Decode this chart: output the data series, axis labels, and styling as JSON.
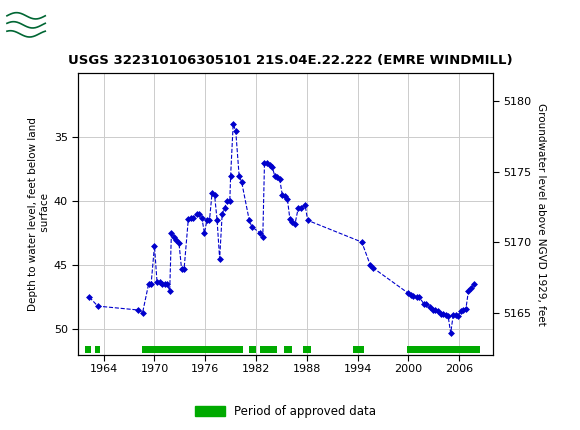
{
  "title": "USGS 322310106305101 21S.04E.22.222 (EMRE WINDMILL)",
  "ylabel_left": "Depth to water level, feet below land\n surface",
  "ylabel_right": "Groundwater level above NGVD 1929, feet",
  "ylim_left": [
    30,
    52
  ],
  "ylim_right": [
    5162,
    5182
  ],
  "xlim": [
    1961,
    2010
  ],
  "xticks": [
    1964,
    1970,
    1976,
    1982,
    1988,
    1994,
    2000,
    2006
  ],
  "yticks_left": [
    35,
    40,
    45,
    50
  ],
  "yticks_right": [
    5165,
    5170,
    5175,
    5180
  ],
  "header_color": "#006633",
  "data_color": "#0000cc",
  "approved_color": "#00aa00",
  "grid_color": "#cccccc",
  "data_points": [
    [
      1962.3,
      47.5
    ],
    [
      1963.3,
      48.2
    ],
    [
      1968.0,
      48.5
    ],
    [
      1968.6,
      48.7
    ],
    [
      1969.3,
      46.5
    ],
    [
      1969.6,
      46.5
    ],
    [
      1970.0,
      43.5
    ],
    [
      1970.3,
      46.3
    ],
    [
      1970.6,
      46.3
    ],
    [
      1970.9,
      46.5
    ],
    [
      1971.2,
      46.5
    ],
    [
      1971.5,
      46.5
    ],
    [
      1971.8,
      47.0
    ],
    [
      1972.0,
      42.5
    ],
    [
      1972.3,
      42.8
    ],
    [
      1972.6,
      43.0
    ],
    [
      1972.9,
      43.3
    ],
    [
      1973.2,
      45.3
    ],
    [
      1973.5,
      45.3
    ],
    [
      1974.0,
      41.4
    ],
    [
      1974.3,
      41.3
    ],
    [
      1974.6,
      41.3
    ],
    [
      1975.0,
      41.0
    ],
    [
      1975.3,
      41.0
    ],
    [
      1975.6,
      41.3
    ],
    [
      1975.9,
      42.5
    ],
    [
      1976.2,
      41.5
    ],
    [
      1976.5,
      41.5
    ],
    [
      1976.8,
      39.4
    ],
    [
      1977.1,
      39.5
    ],
    [
      1977.4,
      41.5
    ],
    [
      1977.7,
      44.5
    ],
    [
      1978.0,
      41.0
    ],
    [
      1978.3,
      40.5
    ],
    [
      1978.6,
      40.0
    ],
    [
      1978.9,
      40.0
    ],
    [
      1979.0,
      38.0
    ],
    [
      1979.3,
      34.0
    ],
    [
      1979.6,
      34.5
    ],
    [
      1980.0,
      38.0
    ],
    [
      1980.3,
      38.5
    ],
    [
      1981.2,
      41.5
    ],
    [
      1981.5,
      42.0
    ],
    [
      1982.5,
      42.5
    ],
    [
      1982.8,
      42.8
    ],
    [
      1983.0,
      37.0
    ],
    [
      1983.3,
      37.0
    ],
    [
      1983.6,
      37.2
    ],
    [
      1983.9,
      37.3
    ],
    [
      1984.2,
      38.0
    ],
    [
      1984.5,
      38.1
    ],
    [
      1984.8,
      38.3
    ],
    [
      1985.1,
      39.5
    ],
    [
      1985.4,
      39.6
    ],
    [
      1985.7,
      39.8
    ],
    [
      1986.0,
      41.4
    ],
    [
      1986.3,
      41.6
    ],
    [
      1986.6,
      41.8
    ],
    [
      1987.0,
      40.5
    ],
    [
      1987.3,
      40.5
    ],
    [
      1987.8,
      40.3
    ],
    [
      1988.1,
      41.5
    ],
    [
      1994.5,
      43.2
    ],
    [
      1995.5,
      45.0
    ],
    [
      1995.8,
      45.2
    ],
    [
      2000.0,
      47.2
    ],
    [
      2000.3,
      47.3
    ],
    [
      2000.6,
      47.4
    ],
    [
      2001.0,
      47.5
    ],
    [
      2001.3,
      47.5
    ],
    [
      2001.8,
      48.0
    ],
    [
      2002.1,
      48.0
    ],
    [
      2002.6,
      48.3
    ],
    [
      2002.9,
      48.5
    ],
    [
      2003.2,
      48.5
    ],
    [
      2003.5,
      48.6
    ],
    [
      2003.8,
      48.8
    ],
    [
      2004.1,
      48.8
    ],
    [
      2004.4,
      48.9
    ],
    [
      2004.7,
      49.0
    ],
    [
      2005.0,
      50.3
    ],
    [
      2005.3,
      48.9
    ],
    [
      2005.6,
      48.9
    ],
    [
      2005.9,
      49.0
    ],
    [
      2006.2,
      48.6
    ],
    [
      2006.5,
      48.5
    ],
    [
      2006.8,
      48.4
    ],
    [
      2007.1,
      47.0
    ],
    [
      2007.4,
      46.8
    ],
    [
      2007.7,
      46.5
    ]
  ],
  "approved_bars": [
    [
      1961.8,
      1962.5
    ],
    [
      1963.0,
      1963.6
    ],
    [
      1968.5,
      1980.5
    ],
    [
      1981.2,
      1982.0
    ],
    [
      1982.5,
      1984.5
    ],
    [
      1985.3,
      1986.3
    ],
    [
      1987.5,
      1988.5
    ],
    [
      1993.5,
      1994.8
    ],
    [
      1999.8,
      2008.5
    ]
  ],
  "legend_label": "Period of approved data"
}
